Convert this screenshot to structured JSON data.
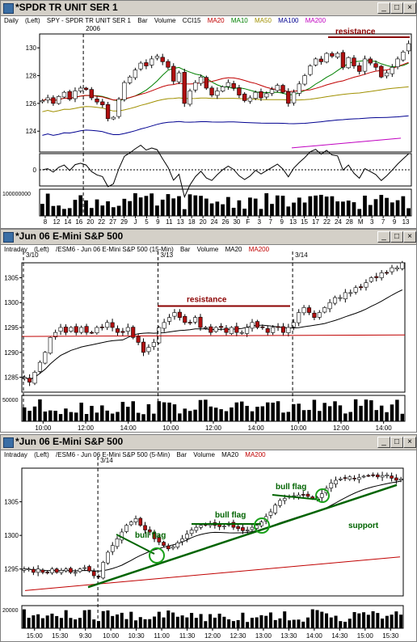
{
  "colors": {
    "up": "#ffffff",
    "down": "#b01010",
    "ma20": "#c00000",
    "ma10": "#008000",
    "ma50": "#a09000",
    "ma100": "#000090",
    "ma200": "#c000c0",
    "annot": "#8b0000",
    "trend": "#006400"
  },
  "windows": [
    {
      "title": "*SPDR TR UNIT SER 1",
      "btns": [
        "_",
        "□",
        "×"
      ],
      "header": [
        "Daily",
        "(Left)",
        "SPY - SPDR TR UNIT SER 1",
        "Bar",
        "Volume",
        "CCI15"
      ],
      "ma_labels": [
        {
          "t": "MA20",
          "c": "#c00000"
        },
        {
          "t": "MA10",
          "c": "#008000"
        },
        {
          "t": "MA50",
          "c": "#a09000"
        },
        {
          "t": "MA100",
          "c": "#000090"
        },
        {
          "t": "MA200",
          "c": "#c000c0"
        }
      ],
      "year_label": "2006",
      "annotation": "resistance",
      "y_ticks": [
        "130",
        "128",
        "126",
        "124"
      ],
      "osc_tick": "0",
      "vol_tick": "100000000",
      "x_ticks": [
        "8",
        "12",
        "14",
        "16",
        "20",
        "22",
        "27",
        "29",
        "J",
        "5",
        "9",
        "11",
        "13",
        "18",
        "20",
        "24",
        "26",
        "30",
        "F",
        "3",
        "7",
        "9",
        "13",
        "15",
        "17",
        "22",
        "24",
        "28",
        "M",
        "3",
        "7",
        "9",
        "13"
      ]
    },
    {
      "title": "*Jun 06 E-Mini S&P 500",
      "btns": [
        "_",
        "□",
        "×"
      ],
      "header": [
        "Intraday",
        "(Left)",
        "/ESM6 - Jun 06 E-Mini S&P 500 (15-Min)",
        "Bar",
        "Volume"
      ],
      "ma_labels": [
        {
          "t": "MA20",
          "c": "#000000"
        },
        {
          "t": "MA200",
          "c": "#c00000"
        }
      ],
      "date_labels": [
        "3/10",
        "3/13",
        "3/14"
      ],
      "annotation": "resistance",
      "y_ticks": [
        "1305",
        "1300",
        "1295",
        "1290",
        "1285"
      ],
      "vol_tick": "50000",
      "x_ticks": [
        "10:00",
        "12:00",
        "14:00",
        "10:00",
        "12:00",
        "14:00",
        "10:00",
        "12:00",
        "14:00"
      ]
    },
    {
      "title": "*Jun 06 E-Mini S&P 500",
      "btns": [
        "_",
        "□",
        "×"
      ],
      "header": [
        "Intraday",
        "(Left)",
        "/ESM6 - Jun 06 E-Mini S&P 500 (5-Min)",
        "Bar",
        "Volume"
      ],
      "ma_labels": [
        {
          "t": "MA20",
          "c": "#000000"
        },
        {
          "t": "MA200",
          "c": "#c00000"
        }
      ],
      "date_labels": [
        "3/14"
      ],
      "annotations": [
        "bull flag",
        "bull flag",
        "bull flag",
        "support"
      ],
      "y_ticks": [
        "1305",
        "1300",
        "1295"
      ],
      "vol_tick": "20000",
      "x_ticks": [
        "15:00",
        "15:30",
        "9:30",
        "10:00",
        "10:30",
        "11:00",
        "11:30",
        "12:00",
        "12:30",
        "13:00",
        "13:30",
        "14:00",
        "14:30",
        "15:00",
        "15:30"
      ]
    }
  ],
  "chart_data": [
    {
      "type": "bar",
      "title": "SPY - SPDR TR UNIT SER 1",
      "period": "Daily",
      "ylim": [
        122.5,
        131
      ],
      "close": [
        126.2,
        126.4,
        126.0,
        126.5,
        126.8,
        126.3,
        126.9,
        127.1,
        127.0,
        126.4,
        126.1,
        125.9,
        124.9,
        125.0,
        126.3,
        127.5,
        127.9,
        128.4,
        128.9,
        128.7,
        129.2,
        129.4,
        129.0,
        128.6,
        127.6,
        128.2,
        126.0,
        126.9,
        127.5,
        127.9,
        127.1,
        126.6,
        126.9,
        127.2,
        127.5,
        127.1,
        126.6,
        126.2,
        126.4,
        126.8,
        126.4,
        126.7,
        127.0,
        127.3,
        126.8,
        126.0,
        126.8,
        127.4,
        128.0,
        128.7,
        129.2,
        129.0,
        129.6,
        129.4,
        129.6,
        128.6,
        129.3,
        128.7,
        128.3,
        129.2,
        128.9,
        128.6,
        127.9,
        128.2,
        128.6,
        129.2,
        129.7,
        130.3
      ],
      "annotations": [
        "resistance"
      ]
    },
    {
      "type": "bar",
      "title": "/ESM6 - Jun 06 E-Mini S&P 500 (15-Min)",
      "ylim": [
        1282,
        1308
      ],
      "close": [
        1285,
        1284,
        1286,
        1288,
        1290,
        1293,
        1294,
        1295,
        1294,
        1295,
        1294,
        1295,
        1294,
        1294,
        1295,
        1295,
        1296,
        1295,
        1294,
        1294,
        1295,
        1293,
        1292,
        1290,
        1291,
        1292,
        1295,
        1296,
        1297,
        1298,
        1297,
        1296,
        1296,
        1297,
        1295,
        1295,
        1294,
        1295,
        1295,
        1294,
        1295,
        1294,
        1294,
        1295,
        1296,
        1295,
        1295,
        1294,
        1295,
        1295,
        1294,
        1295,
        1296,
        1298,
        1299,
        1298,
        1297,
        1298,
        1299,
        1300,
        1301,
        1301,
        1302,
        1302,
        1303,
        1303,
        1304,
        1305,
        1305,
        1306,
        1306,
        1307,
        1307,
        1308
      ],
      "annotations": [
        "resistance"
      ]
    },
    {
      "type": "bar",
      "title": "/ESM6 - Jun 06 E-Mini S&P 500 (5-Min)",
      "ylim": [
        1291,
        1310
      ],
      "close": [
        1295,
        1295,
        1294.5,
        1295,
        1294.5,
        1294.5,
        1295,
        1294.5,
        1294.8,
        1295,
        1294.5,
        1294.5,
        1295,
        1295.2,
        1294.7,
        1294,
        1293.8,
        1296,
        1297.5,
        1298.5,
        1299.5,
        1300.5,
        1301.5,
        1302,
        1302.5,
        1301.5,
        1300.8,
        1300.5,
        1299.5,
        1299,
        1298.5,
        1298,
        1298.3,
        1298.9,
        1299.5,
        1300.2,
        1300.8,
        1301.2,
        1301.5,
        1301.6,
        1301.8,
        1301.5,
        1301.3,
        1301.4,
        1301.8,
        1301.2,
        1301,
        1300.7,
        1300.8,
        1301.2,
        1301.5,
        1302,
        1302.8,
        1303.5,
        1304.5,
        1305.2,
        1305.5,
        1305.8,
        1305.9,
        1306,
        1306,
        1305.8,
        1305.5,
        1305.6,
        1306.2,
        1307,
        1307.8,
        1308.2,
        1308.4,
        1308.5,
        1308.7,
        1308.5,
        1308.6,
        1308.8,
        1308.9,
        1309,
        1308.7,
        1308.9,
        1309,
        1308.5,
        1308.2,
        1308.4
      ],
      "annotations": [
        "bull flag",
        "bull flag",
        "bull flag",
        "support"
      ]
    }
  ]
}
